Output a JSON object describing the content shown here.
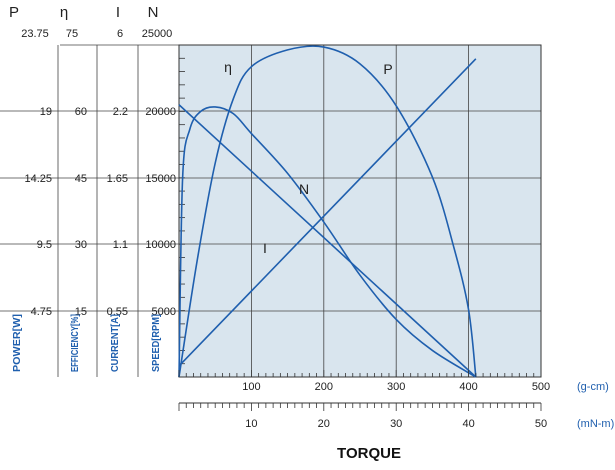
{
  "chart_data": {
    "type": "line",
    "title": "",
    "xlabel": "TORQUE",
    "x_primary": {
      "unit": "(g-cm)",
      "range": [
        0,
        500
      ],
      "ticks": [
        "100",
        "200",
        "300",
        "400",
        "500"
      ]
    },
    "x_secondary": {
      "unit": "(mN-m)",
      "range": [
        0,
        50
      ],
      "ticks": [
        "10",
        "20",
        "30",
        "40",
        "50"
      ]
    },
    "y_axes": [
      {
        "symbol": "P",
        "label": "POWER[W]",
        "max": 23.75,
        "ticks": [
          "23.75",
          "19",
          "14.25",
          "9.5",
          "4.75"
        ]
      },
      {
        "symbol": "η",
        "label": "EFFICIENCY[%]",
        "max": 75,
        "ticks": [
          "75",
          "60",
          "45",
          "30",
          "15"
        ]
      },
      {
        "symbol": "I",
        "label": "CURRENT[A]",
        "max": 6,
        "ticks": [
          "6",
          "2.2",
          "1.65",
          "1.1",
          "0.55"
        ]
      },
      {
        "symbol": "N",
        "label": "SPEED[RPM]",
        "max": 25000,
        "ticks": [
          "25000",
          "20000",
          "15000",
          "10000",
          "5000"
        ]
      }
    ],
    "grid": true,
    "series": [
      {
        "name": "P",
        "color": "#1f5fae",
        "points": [
          [
            0,
            0
          ],
          [
            25,
            8.3
          ],
          [
            50,
            15.3
          ],
          [
            75,
            19.9
          ],
          [
            100,
            22.2
          ],
          [
            150,
            23.4
          ],
          [
            200,
            23.6
          ],
          [
            250,
            22.4
          ],
          [
            300,
            19.4
          ],
          [
            350,
            14.3
          ],
          [
            380,
            9.2
          ],
          [
            400,
            4.8
          ],
          [
            410,
            0
          ]
        ]
      },
      {
        "name": "η",
        "color": "#1f5fae",
        "points": [
          [
            0,
            0
          ],
          [
            5,
            45
          ],
          [
            15,
            56
          ],
          [
            30,
            60
          ],
          [
            50,
            61
          ],
          [
            75,
            59.5
          ],
          [
            100,
            55
          ],
          [
            150,
            46
          ],
          [
            200,
            35
          ],
          [
            250,
            23
          ],
          [
            300,
            13
          ],
          [
            350,
            6
          ],
          [
            410,
            0
          ]
        ]
      },
      {
        "name": "N",
        "color": "#1f5fae",
        "points": [
          [
            0,
            20500
          ],
          [
            410,
            0
          ]
        ]
      },
      {
        "name": "I",
        "color": "#1f5fae",
        "points": [
          [
            0,
            0.2
          ],
          [
            410,
            5.75
          ]
        ]
      }
    ]
  }
}
